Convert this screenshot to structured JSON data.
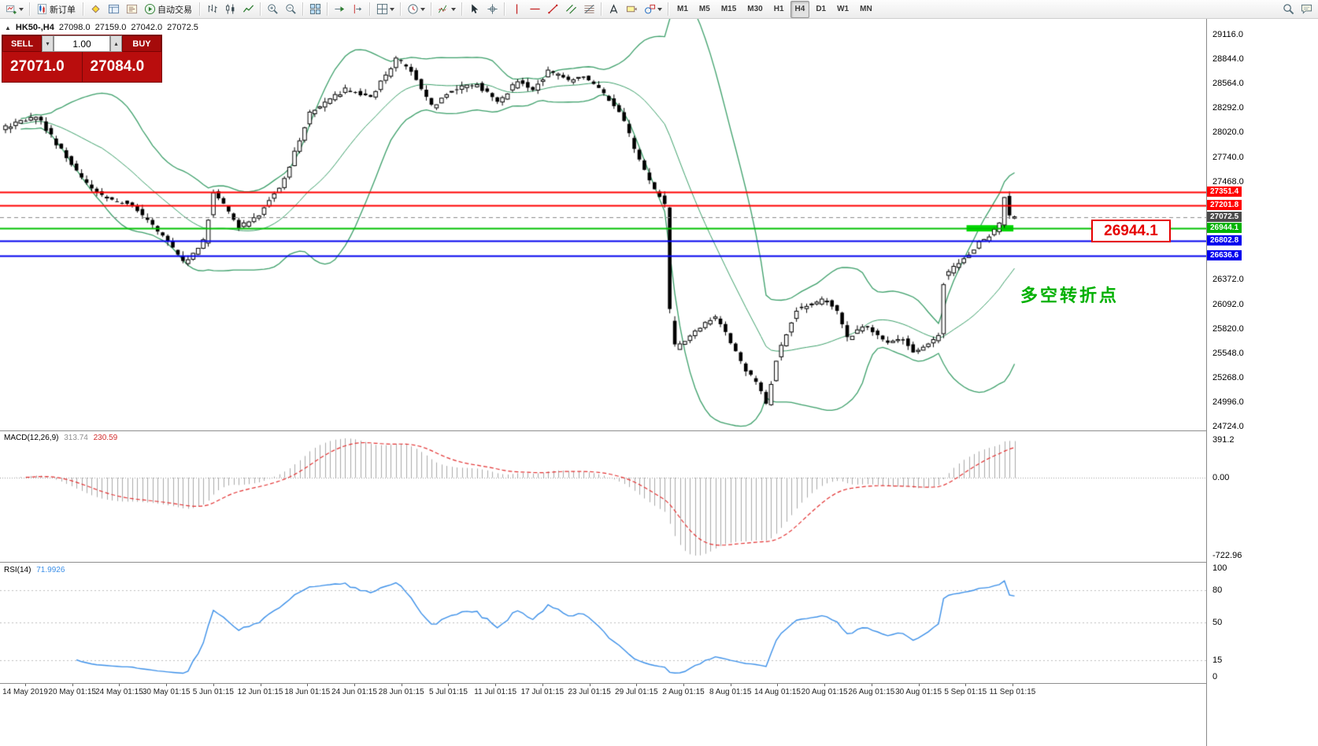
{
  "toolbar": {
    "items": [
      {
        "name": "new-chart-button",
        "icon": "chart-plus",
        "caret": true
      },
      {
        "sep": true
      },
      {
        "name": "new-order-button",
        "icon": "order",
        "label": "新订单"
      },
      {
        "sep": true
      },
      {
        "name": "market-watch-button",
        "icon": "market-watch"
      },
      {
        "name": "data-window-button",
        "icon": "data-window"
      },
      {
        "name": "navigator-button",
        "icon": "navigator"
      },
      {
        "name": "autotrading-button",
        "icon": "play-green",
        "label": "自动交易"
      },
      {
        "sep": true
      },
      {
        "name": "bar-chart-button",
        "icon": "bar-chart"
      },
      {
        "name": "candlestick-chart-button",
        "icon": "candlestick"
      },
      {
        "name": "line-chart-button",
        "icon": "line-chart"
      },
      {
        "sep": true
      },
      {
        "name": "zoom-in-button",
        "icon": "zoom-in"
      },
      {
        "name": "zoom-out-button",
        "icon": "zoom-out"
      },
      {
        "sep": true
      },
      {
        "name": "tile-windows-button",
        "icon": "tile-windows"
      },
      {
        "sep": true
      },
      {
        "name": "auto-scroll-button",
        "icon": "auto-scroll"
      },
      {
        "name": "chart-shift-button",
        "icon": "chart-shift"
      },
      {
        "sep": true
      },
      {
        "name": "new-window-button",
        "icon": "grid",
        "caret": true
      },
      {
        "sep": true
      },
      {
        "name": "period-button",
        "icon": "clock",
        "caret": true
      },
      {
        "sep": true
      },
      {
        "name": "indicators-button",
        "icon": "indicators",
        "caret": true
      },
      {
        "sep": true
      },
      {
        "name": "cursor-button",
        "icon": "cursor"
      },
      {
        "name": "crosshair-button",
        "icon": "crosshair"
      },
      {
        "sep": true
      },
      {
        "name": "vertical-line-button",
        "icon": "vline"
      },
      {
        "name": "horizontal-line-button",
        "icon": "hline"
      },
      {
        "name": "trendline-button",
        "icon": "trendline"
      },
      {
        "name": "channel-button",
        "icon": "channel"
      },
      {
        "name": "fibonacci-button",
        "icon": "fibonacci"
      },
      {
        "sep": true
      },
      {
        "name": "text-button",
        "icon": "text"
      },
      {
        "name": "label-button",
        "icon": "label"
      },
      {
        "name": "shapes-button",
        "icon": "shapes",
        "caret": true
      },
      {
        "sep": true
      },
      {
        "name": "tf-m1-button",
        "text": "M1"
      },
      {
        "name": "tf-m5-button",
        "text": "M5"
      },
      {
        "name": "tf-m15-button",
        "text": "M15"
      },
      {
        "name": "tf-m30-button",
        "text": "M30"
      },
      {
        "name": "tf-h1-button",
        "text": "H1"
      },
      {
        "name": "tf-h4-button",
        "text": "H4",
        "active": true
      },
      {
        "name": "tf-d1-button",
        "text": "D1"
      },
      {
        "name": "tf-w1-button",
        "text": "W1"
      },
      {
        "name": "tf-mn-button",
        "text": "MN"
      }
    ],
    "right_items": [
      {
        "name": "search-button",
        "icon": "search"
      },
      {
        "name": "community-button",
        "icon": "chat"
      }
    ]
  },
  "symbol_info": {
    "symbol": "HK50-,H4",
    "open": "27098.0",
    "high": "27159.0",
    "low": "27042.0",
    "close": "27072.5"
  },
  "trade_panel": {
    "sell_label": "SELL",
    "buy_label": "BUY",
    "volume": "1.00",
    "sell_price": "27071.0",
    "buy_price": "27084.0"
  },
  "colors": {
    "support_highlight": "#00d800",
    "annotation_text_green": "#00b000",
    "annotation_text_red": "#e60000",
    "bollinger": "#3a9e68",
    "candle_up": "#ffffff",
    "candle_down": "#000000",
    "macd_histogram": "#a9a9a9",
    "macd_signal": "#e23030",
    "rsi_line": "#3b8fe8"
  },
  "chart_data": {
    "type": "candlestick",
    "symbol": "HK50-",
    "timeframe": "H4",
    "price_axis": {
      "labels": [
        "29116.0",
        "28844.0",
        "28564.0",
        "28292.0",
        "28020.0",
        "27740.0",
        "27468.0",
        "26372.0",
        "26092.0",
        "25820.0",
        "25548.0",
        "25268.0",
        "24996.0",
        "24724.0"
      ],
      "tags": [
        {
          "value": "27351.4",
          "price": 27351.4,
          "color": "#ff0000"
        },
        {
          "value": "27201.8",
          "price": 27201.8,
          "color": "#ff0000"
        },
        {
          "value": "27072.5",
          "price": 27072.5,
          "color": "#4a4a4a"
        },
        {
          "value": "26944.1",
          "price": 26944.1,
          "color": "#00b300"
        },
        {
          "value": "26802.8",
          "price": 26802.8,
          "color": "#0000ee"
        },
        {
          "value": "26636.6",
          "price": 26636.6,
          "color": "#0000ee"
        }
      ]
    },
    "hlines": [
      {
        "price": 27351.4,
        "color": "#ff0000",
        "width": 2
      },
      {
        "price": 27201.8,
        "color": "#ff0000",
        "width": 2
      },
      {
        "price": 27072.5,
        "color": "#8a8a8a",
        "width": 1,
        "dash": true
      },
      {
        "price": 26944.1,
        "color": "#00c000",
        "width": 2
      },
      {
        "price": 26802.8,
        "color": "#0000ee",
        "width": 2
      },
      {
        "price": 26636.6,
        "color": "#0000ee",
        "width": 2
      }
    ],
    "bollinger": {
      "period": 20,
      "deviation": 2
    },
    "num_candles": 200,
    "price_anchors": [
      [
        0,
        28050
      ],
      [
        7,
        28200
      ],
      [
        16,
        27500
      ],
      [
        20,
        27300
      ],
      [
        26,
        27200
      ],
      [
        33,
        26800
      ],
      [
        36,
        26550
      ],
      [
        40,
        26800
      ],
      [
        42,
        27350
      ],
      [
        47,
        26950
      ],
      [
        51,
        27100
      ],
      [
        56,
        27500
      ],
      [
        61,
        28250
      ],
      [
        68,
        28500
      ],
      [
        73,
        28400
      ],
      [
        78,
        28850
      ],
      [
        81,
        28700
      ],
      [
        85,
        28300
      ],
      [
        89,
        28500
      ],
      [
        94,
        28550
      ],
      [
        98,
        28350
      ],
      [
        102,
        28600
      ],
      [
        105,
        28500
      ],
      [
        108,
        28700
      ],
      [
        112,
        28600
      ],
      [
        115,
        28650
      ],
      [
        119,
        28450
      ],
      [
        122,
        28250
      ],
      [
        126,
        27700
      ],
      [
        128,
        27450
      ],
      [
        130,
        27300
      ],
      [
        131,
        27200
      ],
      [
        132,
        25900
      ],
      [
        133,
        25600
      ],
      [
        135,
        25700
      ],
      [
        138,
        25850
      ],
      [
        141,
        25950
      ],
      [
        144,
        25650
      ],
      [
        147,
        25350
      ],
      [
        149,
        25200
      ],
      [
        151,
        24980
      ],
      [
        153,
        25500
      ],
      [
        157,
        26050
      ],
      [
        160,
        26100
      ],
      [
        163,
        26150
      ],
      [
        165,
        26000
      ],
      [
        167,
        25700
      ],
      [
        170,
        25850
      ],
      [
        172,
        25800
      ],
      [
        175,
        25650
      ],
      [
        178,
        25700
      ],
      [
        180,
        25550
      ],
      [
        182,
        25600
      ],
      [
        184,
        25700
      ],
      [
        185,
        25750
      ],
      [
        186,
        26400
      ],
      [
        188,
        26500
      ],
      [
        191,
        26650
      ],
      [
        193,
        26800
      ],
      [
        195,
        26850
      ],
      [
        197,
        27000
      ],
      [
        198,
        27300
      ],
      [
        199,
        27072.5
      ]
    ],
    "macd": {
      "label": "MACD(12,26,9)",
      "main_value": "313.74",
      "signal_value": "230.59",
      "axis": [
        "391.2",
        "0.00",
        "-722.96"
      ]
    },
    "rsi": {
      "label": "RSI(14)",
      "value": "71.9926",
      "axis": [
        {
          "label": "100",
          "v": 100
        },
        {
          "label": "80",
          "v": 80
        },
        {
          "label": "50",
          "v": 50
        },
        {
          "label": "15",
          "v": 15
        },
        {
          "label": "0",
          "v": 0
        }
      ],
      "levels": [
        80,
        50,
        15
      ]
    },
    "time_labels": [
      "14 May 2019",
      "20 May 01:15",
      "24 May 01:15",
      "30 May 01:15",
      "5 Jun 01:15",
      "12 Jun 01:15",
      "18 Jun 01:15",
      "24 Jun 01:15",
      "28 Jun 01:15",
      "5 Jul 01:15",
      "11 Jul 01:15",
      "17 Jul 01:15",
      "23 Jul 01:15",
      "29 Jul 01:15",
      "2 Aug 01:15",
      "8 Aug 01:15",
      "14 Aug 01:15",
      "20 Aug 01:15",
      "26 Aug 01:15",
      "30 Aug 01:15",
      "5 Sep 01:15",
      "11 Sep 01:15"
    ],
    "annotations": {
      "support_price": "26944.1",
      "turning_point": "多空转折点"
    }
  }
}
